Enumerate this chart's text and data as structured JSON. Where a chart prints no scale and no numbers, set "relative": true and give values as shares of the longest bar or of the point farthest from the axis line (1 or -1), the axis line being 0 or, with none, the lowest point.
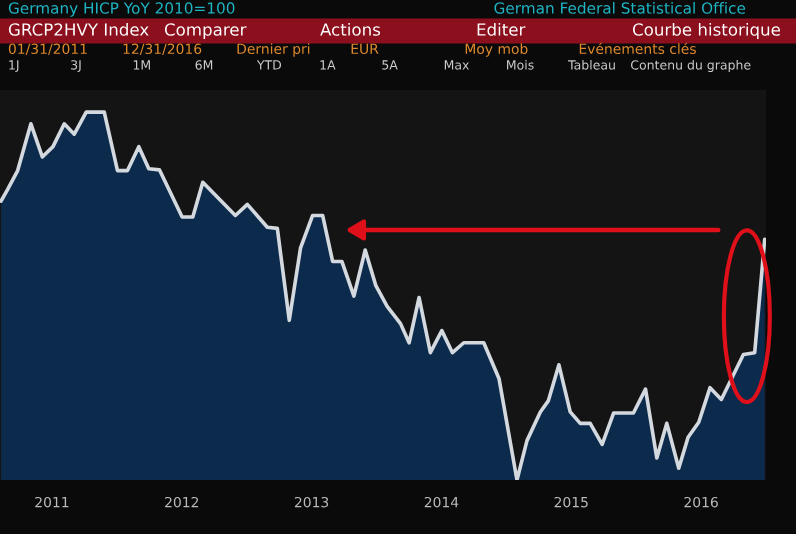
{
  "chart_data": {
    "type": "area",
    "relative": true,
    "title": "Germany HICP YoY 2010=100",
    "annotations": [
      "German Federal Statistical Office",
      "GRCP2HVY Index",
      "Comparer",
      "Actions",
      "Editer",
      "Courbe historique",
      "01/31/2011",
      "12/31/2016",
      "Dernier pri",
      "EUR",
      "Moy mob",
      "Evénements clés",
      "1J",
      "3J",
      "1M",
      "6M",
      "YTD",
      "1A",
      "5A",
      "Max",
      "Mois",
      "Tableau",
      "Contenu du graphe"
    ],
    "xlim": [
      2011.1,
      2017.0
    ],
    "xticks": [
      {
        "value": 2011.5,
        "label": "2011"
      },
      {
        "value": 2012.5,
        "label": "2012"
      },
      {
        "value": 2013.5,
        "label": "2013"
      },
      {
        "value": 2014.5,
        "label": "2014"
      },
      {
        "value": 2015.5,
        "label": "2015"
      },
      {
        "value": 2016.5,
        "label": "2016"
      }
    ],
    "grid": false,
    "series": [
      {
        "color": "#0c2a4c",
        "x": [
          2011.108,
          2011.159,
          2011.236,
          2011.338,
          2011.426,
          2011.508,
          2011.595,
          2011.672,
          2011.764,
          2011.903,
          2012.005,
          2012.082,
          2012.169,
          2012.246,
          2012.328,
          2012.503,
          2012.585,
          2012.662,
          2012.913,
          2013.005,
          2013.159,
          2013.236,
          2013.328,
          2013.415,
          2013.508,
          2013.585,
          2013.662,
          2013.733,
          2013.826,
          2013.913,
          2013.995,
          2014.082,
          2014.185,
          2014.251,
          2014.328,
          2014.415,
          2014.503,
          2014.585,
          2014.672,
          2014.826,
          2014.944,
          2015.082,
          2015.159,
          2015.262,
          2015.323,
          2015.405,
          2015.492,
          2015.569,
          2015.646,
          2015.738,
          2015.826,
          2015.979,
          2016.072,
          2016.159,
          2016.236,
          2016.328,
          2016.4,
          2016.482,
          2016.569,
          2016.656,
          2016.826,
          2016.913,
          2016.99
        ],
        "values": [
          0.758,
          0.79,
          0.841,
          0.968,
          0.878,
          0.906,
          0.968,
          0.94,
          1.0,
          1.0,
          0.841,
          0.841,
          0.906,
          0.846,
          0.843,
          0.715,
          0.715,
          0.809,
          0.719,
          0.749,
          0.687,
          0.684,
          0.434,
          0.631,
          0.719,
          0.719,
          0.594,
          0.594,
          0.5,
          0.625,
          0.528,
          0.472,
          0.425,
          0.373,
          0.496,
          0.346,
          0.406,
          0.346,
          0.373,
          0.373,
          0.275,
          0.0,
          0.107,
          0.185,
          0.215,
          0.313,
          0.185,
          0.154,
          0.154,
          0.097,
          0.182,
          0.182,
          0.247,
          0.06,
          0.154,
          0.032,
          0.116,
          0.157,
          0.251,
          0.219,
          0.341,
          0.346,
          0.654
        ]
      }
    ]
  }
}
